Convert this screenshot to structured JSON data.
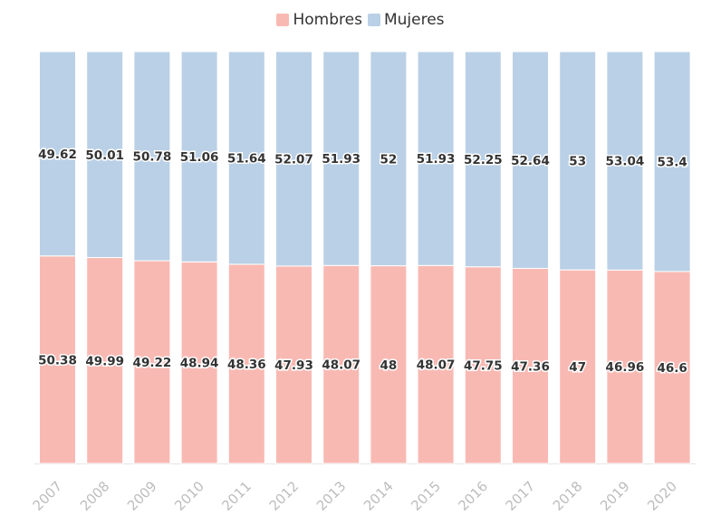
{
  "chart_data": {
    "type": "bar",
    "stacked": true,
    "categories": [
      "2007",
      "2008",
      "2009",
      "2010",
      "2011",
      "2012",
      "2013",
      "2014",
      "2015",
      "2016",
      "2017",
      "2018",
      "2019",
      "2020"
    ],
    "series": [
      {
        "name": "Hombres",
        "color": "#f9b9b3",
        "values": [
          50.38,
          49.99,
          49.22,
          48.94,
          48.36,
          47.93,
          48.07,
          48,
          48.07,
          47.75,
          47.36,
          47,
          46.96,
          46.6
        ]
      },
      {
        "name": "Mujeres",
        "color": "#bad0e6",
        "values": [
          49.62,
          50.01,
          50.78,
          51.06,
          51.64,
          52.07,
          51.93,
          52,
          51.93,
          52.25,
          52.64,
          53,
          53.04,
          53.4
        ]
      }
    ],
    "ylim": [
      0,
      100
    ],
    "legend_position": "top-center",
    "data_labels": true
  }
}
